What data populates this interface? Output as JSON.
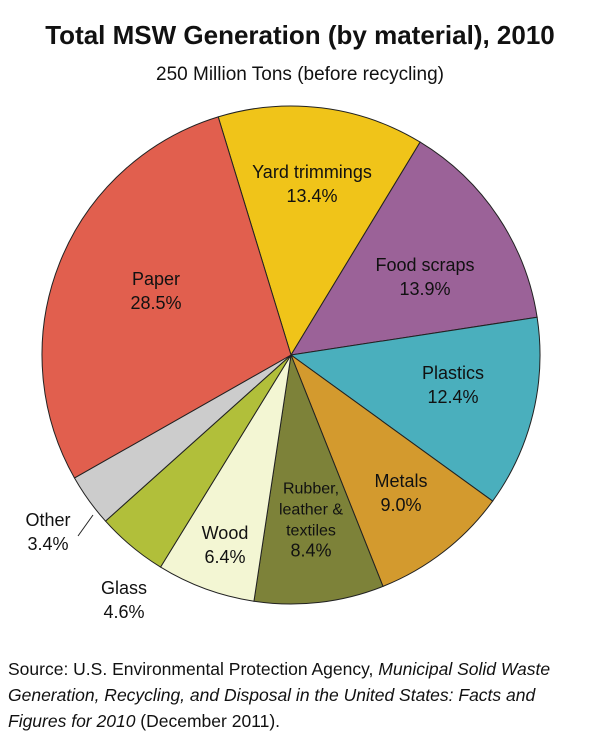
{
  "chart_data": {
    "type": "pie",
    "title": "Total MSW Generation (by material), 2010",
    "subtitle": "250 Million Tons (before recycling)",
    "slices": [
      {
        "name": "Yard trimmings",
        "label_lines": [
          "Yard trimmings"
        ],
        "value_label": "13.4%",
        "value": 13.4,
        "color": "#f0c419"
      },
      {
        "name": "Food scraps",
        "label_lines": [
          "Food scraps"
        ],
        "value_label": "13.9%",
        "value": 13.9,
        "color": "#9b6298"
      },
      {
        "name": "Plastics",
        "label_lines": [
          "Plastics"
        ],
        "value_label": "12.4%",
        "value": 12.4,
        "color": "#4aafbd"
      },
      {
        "name": "Metals",
        "label_lines": [
          "Metals"
        ],
        "value_label": "9.0%",
        "value": 9.0,
        "color": "#d39a2e"
      },
      {
        "name": "Rubber, leather & textiles",
        "label_lines": [
          "Rubber,",
          "leather &",
          "textiles"
        ],
        "value_label": "8.4%",
        "value": 8.4,
        "color": "#7d8239"
      },
      {
        "name": "Wood",
        "label_lines": [
          "Wood"
        ],
        "value_label": "6.4%",
        "value": 6.4,
        "color": "#f3f6d3"
      },
      {
        "name": "Glass",
        "label_lines": [
          "Glass"
        ],
        "value_label": "4.6%",
        "value": 4.6,
        "color": "#b1bf3a"
      },
      {
        "name": "Other",
        "label_lines": [
          "Other"
        ],
        "value_label": "3.4%",
        "value": 3.4,
        "color": "#cccccc"
      },
      {
        "name": "Paper",
        "label_lines": [
          "Paper"
        ],
        "value_label": "28.5%",
        "value": 28.5,
        "color": "#e15f4e"
      }
    ]
  },
  "source": {
    "prefix": "Source: U.S. Environmental Protection Agency, ",
    "italic": "Municipal Solid Waste Generation, Recycling, and Disposal in the United States: Facts and Figures for 2010",
    "suffix": " (December 2011)."
  }
}
